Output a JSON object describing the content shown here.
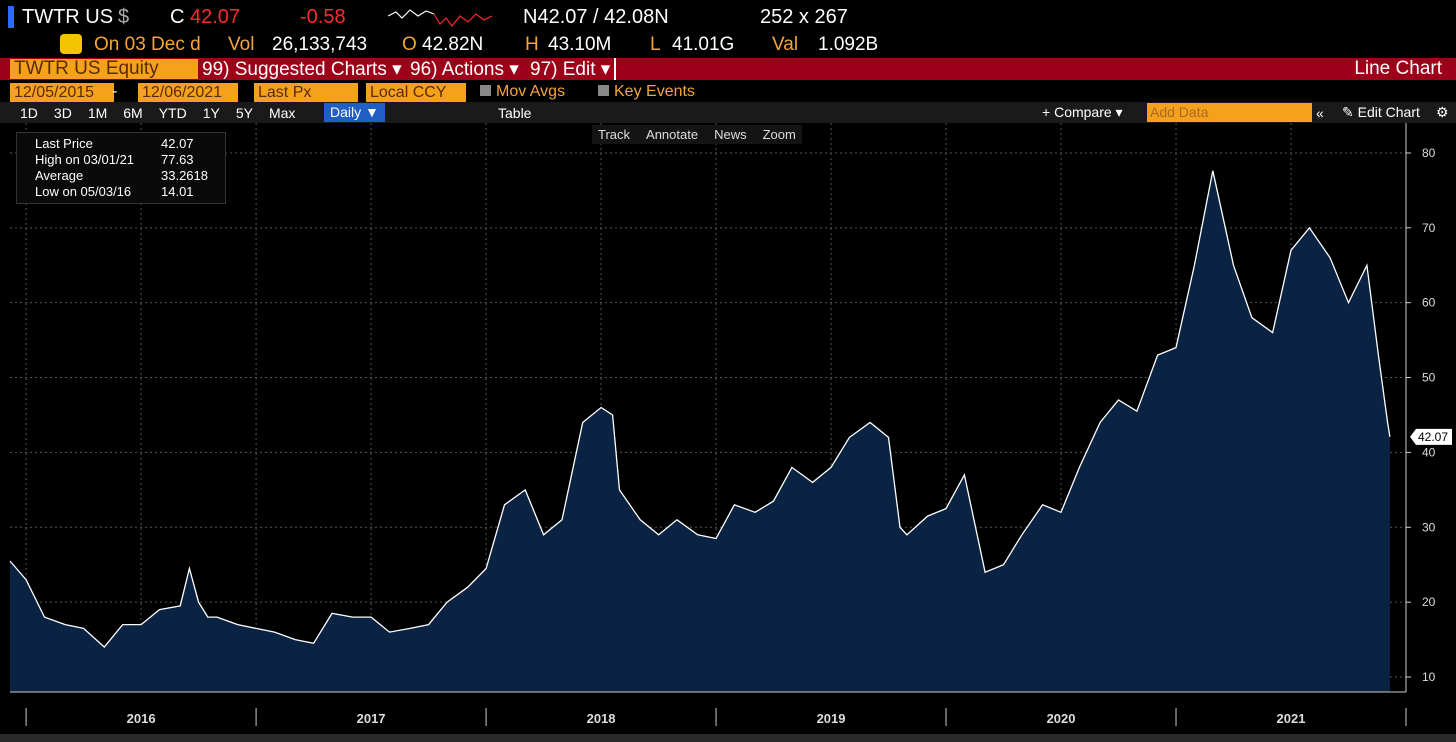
{
  "header": {
    "ticker": "TWTR US",
    "currency": "$",
    "close_label": "C",
    "last": "42.07",
    "change": "-0.58",
    "bid_ask": "N42.07 / 42.08N",
    "size": "252 x 267"
  },
  "quote": {
    "date": "On 03 Dec d",
    "vol_label": "Vol",
    "vol": "26,133,743",
    "open_label": "O",
    "open": "42.82N",
    "high_label": "H",
    "high": "43.10M",
    "low_label": "L",
    "low": "41.01G",
    "val_label": "Val",
    "val": "1.092B"
  },
  "menu": {
    "security": "TWTR US Equity",
    "items": [
      "99) Suggested Charts",
      "96) Actions",
      "97) Edit"
    ],
    "view": "Line Chart"
  },
  "settings": {
    "start": "12/05/2015",
    "dash": "-",
    "end": "12/06/2021",
    "field": "Last Px",
    "ccy": "Local CCY",
    "mov_avgs": "Mov Avgs",
    "key_events": "Key Events"
  },
  "toolbar": {
    "periods": [
      "1D",
      "3D",
      "1M",
      "6M",
      "YTD",
      "1Y",
      "5Y",
      "Max"
    ],
    "frequency": "Daily",
    "table": "Table",
    "compare": "Compare",
    "add_data": "Add Data",
    "edit_chart": "Edit Chart"
  },
  "chart_tools": [
    "Track",
    "Annotate",
    "News",
    "Zoom"
  ],
  "legend": [
    {
      "label": "Last Price",
      "value": "42.07"
    },
    {
      "label": "High on 03/01/21",
      "value": "77.63"
    },
    {
      "label": "Average",
      "value": "33.2618"
    },
    {
      "label": "Low on 05/03/16",
      "value": "14.01"
    }
  ],
  "chart_data": {
    "type": "area",
    "color": "#ffffff",
    "fill": "#0b2342",
    "x": [
      2015.93,
      2016.0,
      2016.08,
      2016.17,
      2016.25,
      2016.34,
      2016.42,
      2016.5,
      2016.58,
      2016.67,
      2016.71,
      2016.75,
      2016.79,
      2016.83,
      2016.92,
      2017.0,
      2017.08,
      2017.17,
      2017.25,
      2017.33,
      2017.42,
      2017.5,
      2017.58,
      2017.67,
      2017.75,
      2017.83,
      2017.92,
      2018.0,
      2018.08,
      2018.17,
      2018.25,
      2018.33,
      2018.42,
      2018.5,
      2018.55,
      2018.58,
      2018.67,
      2018.75,
      2018.83,
      2018.92,
      2019.0,
      2019.08,
      2019.17,
      2019.25,
      2019.33,
      2019.42,
      2019.5,
      2019.58,
      2019.67,
      2019.75,
      2019.8,
      2019.83,
      2019.92,
      2020.0,
      2020.08,
      2020.17,
      2020.25,
      2020.33,
      2020.42,
      2020.5,
      2020.58,
      2020.67,
      2020.75,
      2020.83,
      2020.92,
      2021.0,
      2021.08,
      2021.16,
      2021.25,
      2021.33,
      2021.42,
      2021.5,
      2021.58,
      2021.67,
      2021.75,
      2021.83,
      2021.88,
      2021.92,
      2021.93
    ],
    "values": [
      25.5,
      23,
      18,
      17,
      16.5,
      14.01,
      17,
      17,
      19,
      19.5,
      24.5,
      20,
      18,
      18,
      17,
      16.5,
      16,
      15,
      14.5,
      18.5,
      18,
      18,
      16,
      16.5,
      17,
      20,
      22,
      24.5,
      33,
      35,
      29,
      31,
      44,
      46,
      45,
      35,
      31,
      29,
      31,
      29,
      28.5,
      33,
      32,
      33.5,
      38,
      36,
      38,
      42,
      44,
      42,
      30,
      29,
      31.5,
      32.5,
      37,
      24,
      25,
      29,
      33,
      32,
      38,
      44,
      47,
      45.5,
      53,
      54,
      65,
      77.63,
      65,
      58,
      56,
      67,
      70,
      66,
      60,
      65,
      53,
      44,
      42.07
    ],
    "xlim": [
      2015.93,
      2022.0
    ],
    "xticks": [
      2016,
      2017,
      2018,
      2019,
      2020,
      2021,
      2022
    ],
    "xlabels": [
      {
        "value": 2016.5,
        "label": "2016"
      },
      {
        "value": 2017.5,
        "label": "2017"
      },
      {
        "value": 2018.5,
        "label": "2018"
      },
      {
        "value": 2019.5,
        "label": "2019"
      },
      {
        "value": 2020.5,
        "label": "2020"
      },
      {
        "value": 2021.5,
        "label": "2021"
      }
    ],
    "ylim": [
      8,
      84
    ],
    "yticks": [
      10,
      20,
      30,
      40,
      50,
      60,
      70,
      80
    ],
    "grid": true,
    "last_value": 42.07,
    "last_value_label": "42.07"
  }
}
